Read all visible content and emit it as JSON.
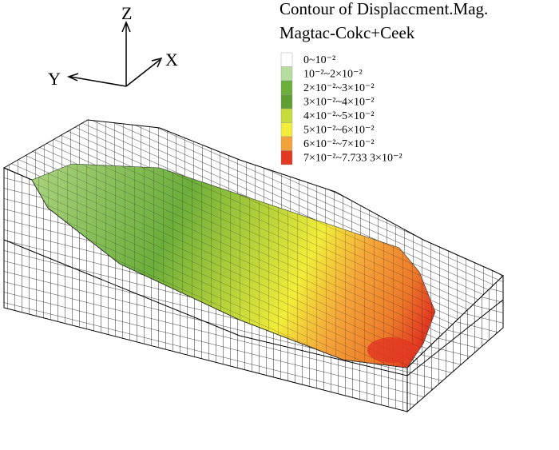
{
  "axes": {
    "x": "X",
    "y": "Y",
    "z": "Z"
  },
  "legend": {
    "title": "Contour of Displaccment.Mag.",
    "subtitle": "Magtac-Cokc+Ceek",
    "entries": [
      {
        "label": "0~10⁻²",
        "color": "#ffffff"
      },
      {
        "label": "10⁻²~2×10⁻²",
        "color": "#b7dca0"
      },
      {
        "label": "2×10⁻²~3×10⁻²",
        "color": "#6cae3c"
      },
      {
        "label": "3×10⁻²~4×10⁻²",
        "color": "#5f9e33"
      },
      {
        "label": "4×10⁻²~5×10⁻²",
        "color": "#c5dc3a"
      },
      {
        "label": "5×10⁻²~6×10⁻²",
        "color": "#f2ec3a"
      },
      {
        "label": "6×10⁻²~7×10⁻²",
        "color": "#f2a23a"
      },
      {
        "label": "7×10⁻²~7.733 3×10⁻²",
        "color": "#e23a22"
      }
    ]
  }
}
